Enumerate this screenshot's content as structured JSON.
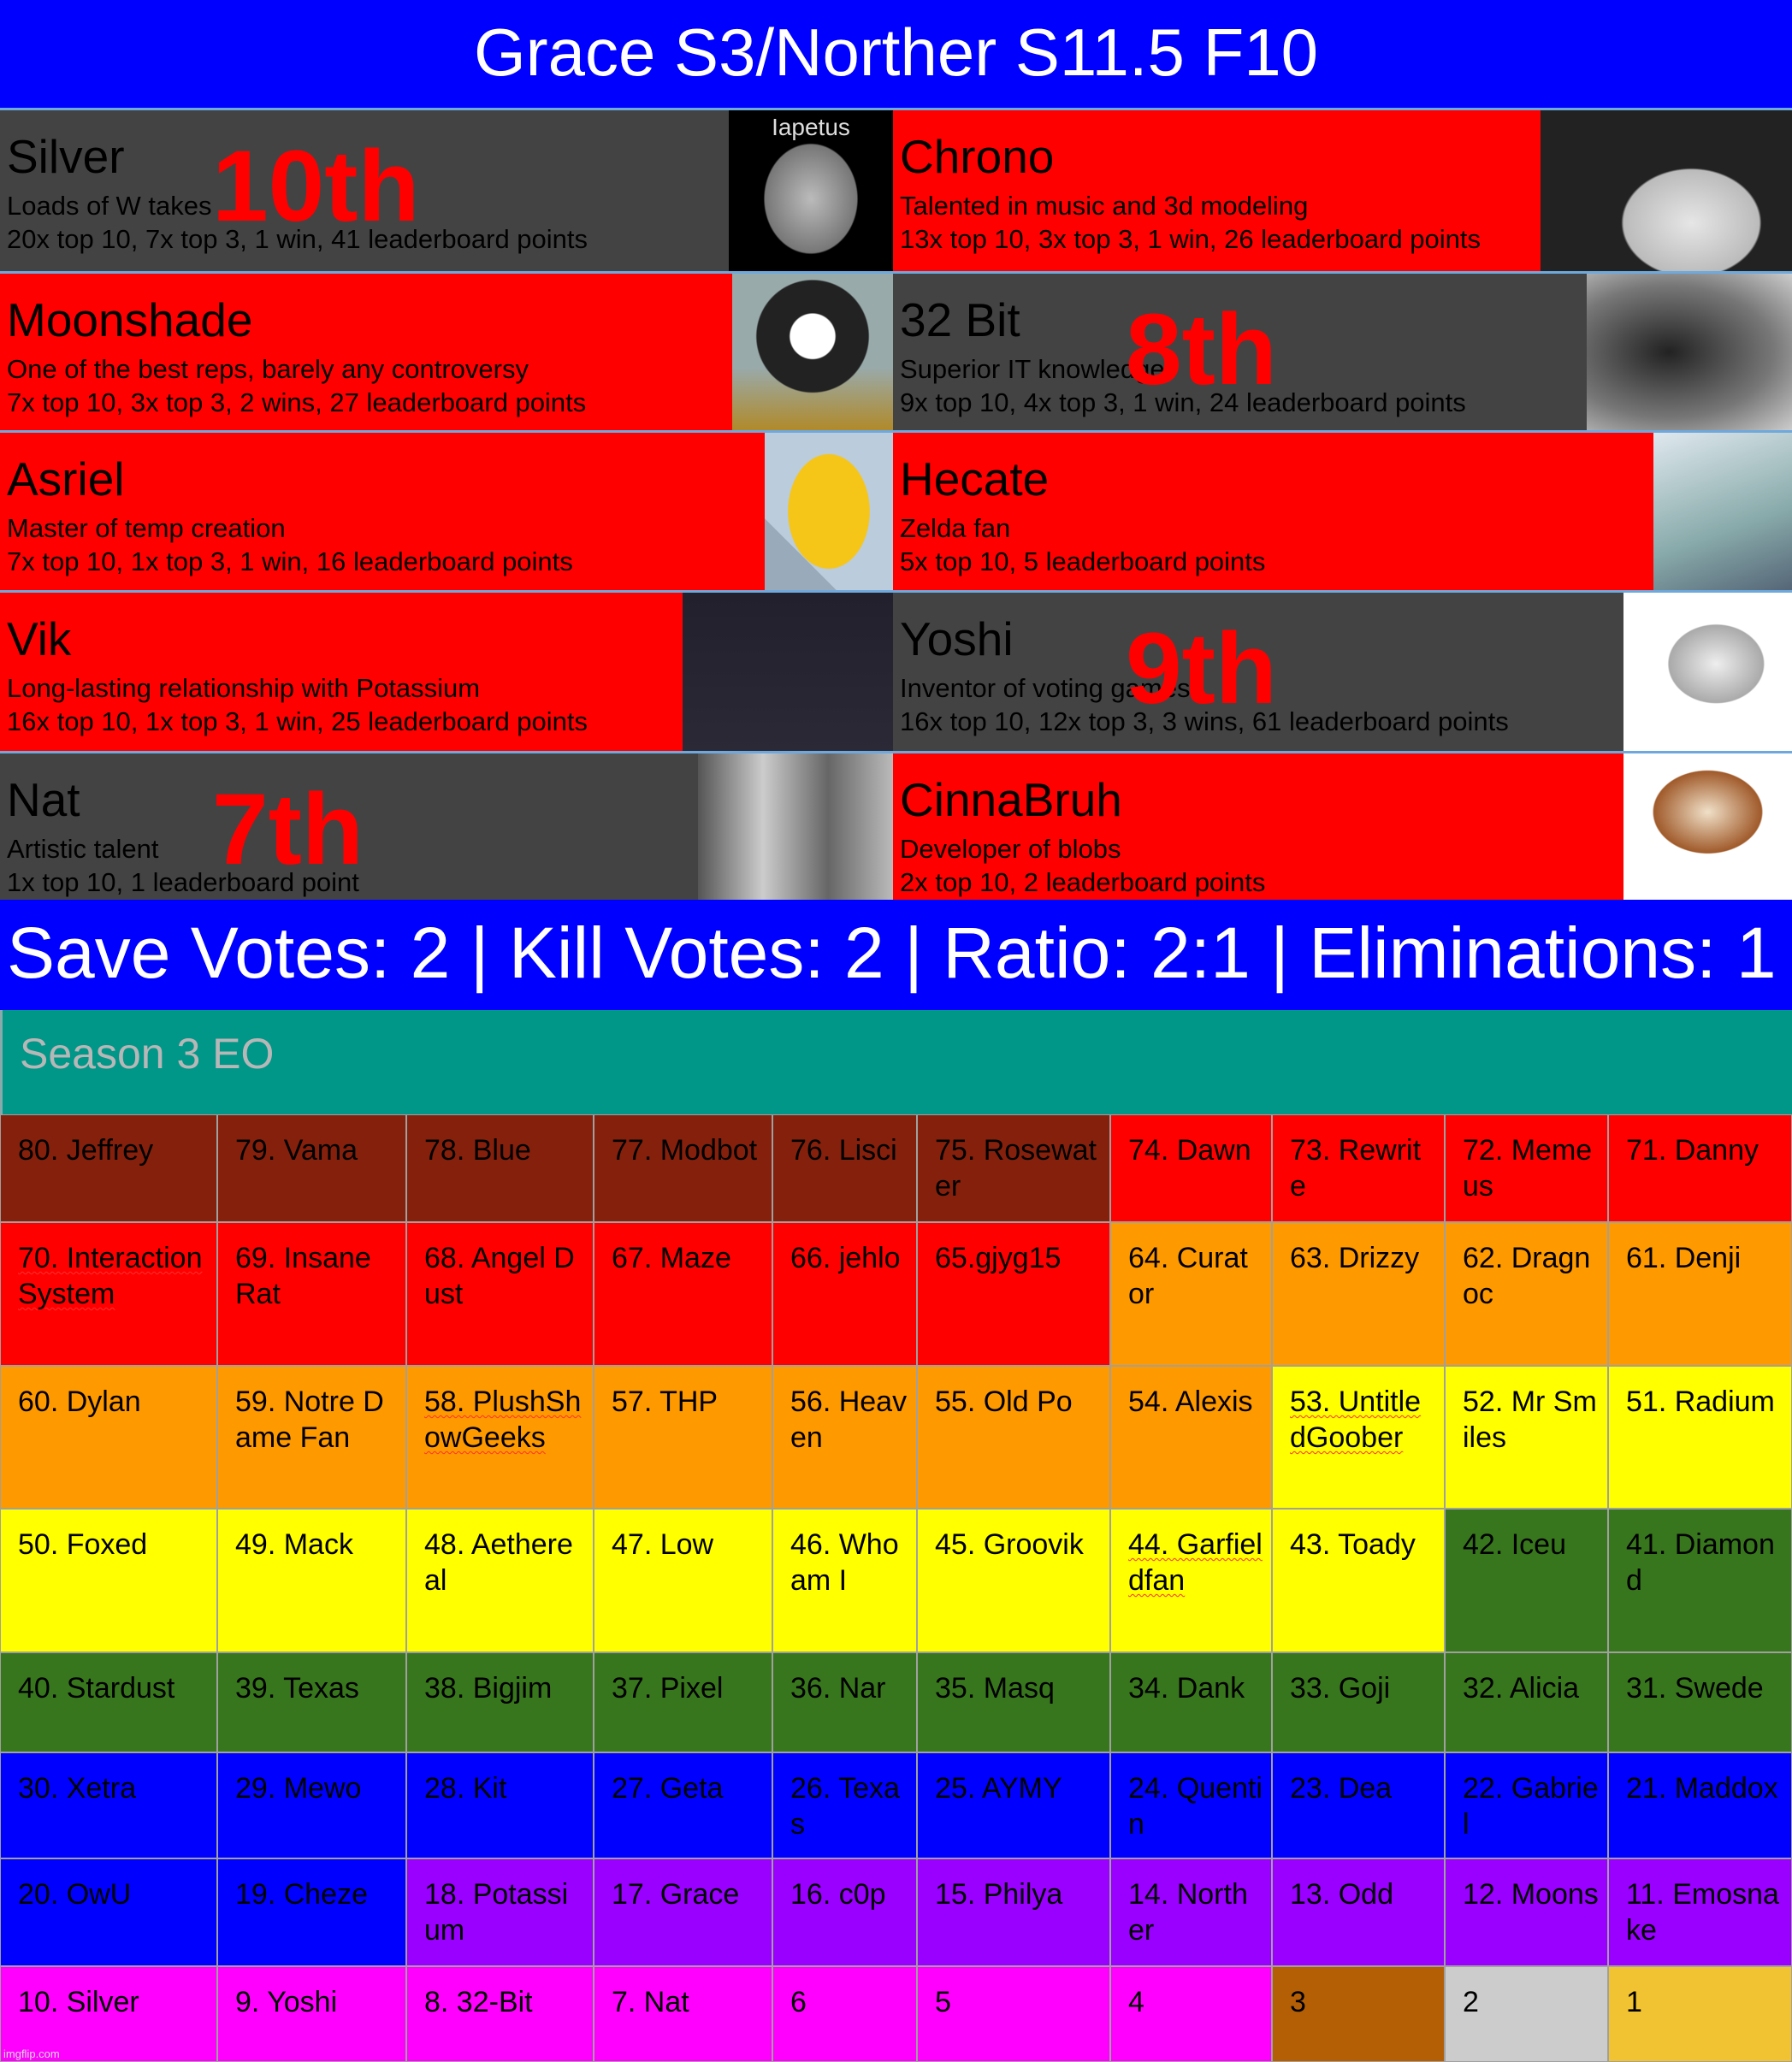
{
  "title": "Grace S3/Norther S11.5 F10",
  "colors": {
    "blue": "#0000ff",
    "red": "#ff0000",
    "gray": "#434343",
    "teal": "#009688",
    "maroon": "#85200c",
    "orange": "#ff9900",
    "yellow": "#ffff00",
    "green": "#38761d",
    "purple": "#9900ff",
    "magenta": "#ff00ff",
    "bronze": "#b45f06",
    "silver": "#cccccc",
    "gold": "#f1c232"
  },
  "cards": [
    {
      "name": "Silver",
      "desc": "Loads of W takes",
      "stats": "20x top 10, 7x top 3, 1 win, 41 leaderboard points",
      "bg": "#434343",
      "rank": "10th",
      "image": "moon-photo",
      "image_label": "Iapetus"
    },
    {
      "name": "Chrono",
      "desc": "Talented  in music and 3d modeling",
      "stats": "13x top 10, 3x top 3, 1 win, 26 leaderboard points",
      "bg": "#ff0000",
      "rank": "",
      "image": "3d-avatar"
    },
    {
      "name": "Moonshade",
      "desc": "One of the best reps, barely any controversy",
      "stats": "7x top 10, 3x top 3, 2 wins, 27 leaderboard points",
      "bg": "#ff0000",
      "rank": "",
      "image": "anime-character"
    },
    {
      "name": "32 Bit",
      "desc": "Superior IT knowledge",
      "stats": "9x top 10, 4x top 3, 1 win, 24 leaderboard points",
      "bg": "#434343",
      "rank": "8th",
      "image": "blurry-cat"
    },
    {
      "name": "Asriel",
      "desc": "Master of temp creation",
      "stats": "7x top 10, 1x top 3, 1 win, 16 leaderboard points",
      "bg": "#ff0000",
      "rank": "",
      "image": "cartoon-character"
    },
    {
      "name": "Hecate",
      "desc": "Zelda fan",
      "stats": "5x top 10, 5 leaderboard points",
      "bg": "#ff0000",
      "rank": "",
      "image": "game-cover"
    },
    {
      "name": "Vik",
      "desc": "Long-lasting relationship with Potassium",
      "stats": "16x top 10, 1x top 3, 1 win, 25 leaderboard points",
      "bg": "#ff0000",
      "rank": "",
      "image": "dark-drawing"
    },
    {
      "name": "Yoshi",
      "desc": "Inventor of voting games",
      "stats": "16x top 10, 12x top 3, 3 wins, 61 leaderboard points",
      "bg": "#434343",
      "rank": "9th",
      "image": "yoshi-render"
    },
    {
      "name": "Nat",
      "desc": "Artistic talent",
      "stats": "1x top 10, 1 leaderboard point",
      "bg": "#434343",
      "rank": "7th",
      "image": "comic-panel"
    },
    {
      "name": "CinnaBruh",
      "desc": "Developer of blobs",
      "stats": "2x top 10, 2 leaderboard points",
      "bg": "#ff0000",
      "rank": "",
      "image": "cinnamon-roll"
    }
  ],
  "votes": "Save Votes: 2 | Kill Votes: 2 | Ratio: 2:1 | Eliminations: 1",
  "season_title": "Season 3 EO",
  "grid": [
    [
      {
        "t": "80. Jeffrey",
        "c": "#85200c"
      },
      {
        "t": "79. Vama",
        "c": "#85200c"
      },
      {
        "t": "78. Blue",
        "c": "#85200c"
      },
      {
        "t": "77. Modbot",
        "c": "#85200c"
      },
      {
        "t": "76. Lisci",
        "c": "#85200c"
      },
      {
        "t": "75. Rosewater",
        "c": "#85200c"
      },
      {
        "t": "74. Dawn",
        "c": "#ff0000"
      },
      {
        "t": "73. Rewrite",
        "c": "#ff0000"
      },
      {
        "t": "72. Memeus",
        "c": "#ff0000"
      },
      {
        "t": "71. Danny",
        "c": "#ff0000"
      }
    ],
    [
      {
        "t": "70. InteractionSystem",
        "c": "#ff0000",
        "sq": true
      },
      {
        "t": "69. Insane Rat",
        "c": "#ff0000"
      },
      {
        "t": "68. Angel Dust",
        "c": "#ff0000"
      },
      {
        "t": "67. Maze",
        "c": "#ff0000"
      },
      {
        "t": "66. jehlo",
        "c": "#ff0000"
      },
      {
        "t": "65.gjyg15",
        "c": "#ff0000"
      },
      {
        "t": "64. Curator",
        "c": "#ff9900"
      },
      {
        "t": "63. Drizzy",
        "c": "#ff9900"
      },
      {
        "t": "62. Dragnoc",
        "c": "#ff9900"
      },
      {
        "t": "61. Denji",
        "c": "#ff9900"
      }
    ],
    [
      {
        "t": "60. Dylan",
        "c": "#ff9900"
      },
      {
        "t": "59. Notre Dame Fan",
        "c": "#ff9900"
      },
      {
        "t": "58. PlushShowGeeks",
        "c": "#ff9900",
        "sq": true
      },
      {
        "t": "57. THP",
        "c": "#ff9900"
      },
      {
        "t": "56. Heaven",
        "c": "#ff9900"
      },
      {
        "t": "55. Old Po",
        "c": "#ff9900"
      },
      {
        "t": "54. Alexis",
        "c": "#ff9900"
      },
      {
        "t": "53. UntitledGoober",
        "c": "#ffff00",
        "sq": true
      },
      {
        "t": "52. Mr Smiles",
        "c": "#ffff00"
      },
      {
        "t": "51. Radium",
        "c": "#ffff00"
      }
    ],
    [
      {
        "t": "50. Foxed",
        "c": "#ffff00"
      },
      {
        "t": "49. Mack",
        "c": "#ffff00"
      },
      {
        "t": "48. Aethereal",
        "c": "#ffff00"
      },
      {
        "t": "47. Low",
        "c": "#ffff00"
      },
      {
        "t": "46. Who am I",
        "c": "#ffff00"
      },
      {
        "t": "45. Groovik",
        "c": "#ffff00"
      },
      {
        "t": "44. Garfieldfan",
        "c": "#ffff00",
        "sq": true
      },
      {
        "t": "43. Toady",
        "c": "#ffff00"
      },
      {
        "t": "42. Iceu",
        "c": "#38761d"
      },
      {
        "t": "41. Diamond",
        "c": "#38761d"
      }
    ],
    [
      {
        "t": "40. Stardust",
        "c": "#38761d"
      },
      {
        "t": "39. Texas",
        "c": "#38761d"
      },
      {
        "t": "38. Bigjim",
        "c": "#38761d"
      },
      {
        "t": "37. Pixel",
        "c": "#38761d"
      },
      {
        "t": "36. Nar",
        "c": "#38761d"
      },
      {
        "t": "35. Masq",
        "c": "#38761d"
      },
      {
        "t": "34. Dank",
        "c": "#38761d"
      },
      {
        "t": "33. Goji",
        "c": "#38761d"
      },
      {
        "t": "32. Alicia",
        "c": "#38761d"
      },
      {
        "t": "31. Swede",
        "c": "#38761d"
      }
    ],
    [
      {
        "t": "30. Xetra",
        "c": "#0000ff"
      },
      {
        "t": "29. Mewo",
        "c": "#0000ff"
      },
      {
        "t": "28. Kit",
        "c": "#0000ff"
      },
      {
        "t": "27. Geta",
        "c": "#0000ff"
      },
      {
        "t": "26. Texas",
        "c": "#0000ff"
      },
      {
        "t": "25. AYMY",
        "c": "#0000ff"
      },
      {
        "t": "24. Quentin",
        "c": "#0000ff"
      },
      {
        "t": "23. Dea",
        "c": "#0000ff"
      },
      {
        "t": "22. Gabriel",
        "c": "#0000ff"
      },
      {
        "t": "21. Maddox",
        "c": "#0000ff"
      }
    ],
    [
      {
        "t": "20. OwU",
        "c": "#0000ff"
      },
      {
        "t": "19. Cheze",
        "c": "#0000ff"
      },
      {
        "t": "18. Potassium",
        "c": "#9900ff"
      },
      {
        "t": "17. Grace",
        "c": "#9900ff"
      },
      {
        "t": "16. c0p",
        "c": "#9900ff"
      },
      {
        "t": "15. Philya",
        "c": "#9900ff"
      },
      {
        "t": "14. Norther",
        "c": "#9900ff"
      },
      {
        "t": "13. Odd",
        "c": "#9900ff"
      },
      {
        "t": "12. Moons",
        "c": "#9900ff"
      },
      {
        "t": "11. Emosnake",
        "c": "#9900ff"
      }
    ],
    [
      {
        "t": "10. Silver",
        "c": "#ff00ff"
      },
      {
        "t": "9. Yoshi",
        "c": "#ff00ff"
      },
      {
        "t": "8. 32-Bit",
        "c": "#ff00ff"
      },
      {
        "t": "7. Nat",
        "c": "#ff00ff"
      },
      {
        "t": "6",
        "c": "#ff00ff"
      },
      {
        "t": "5",
        "c": "#ff00ff"
      },
      {
        "t": "4",
        "c": "#ff00ff"
      },
      {
        "t": "3",
        "c": "#b45f06"
      },
      {
        "t": "2",
        "c": "#cccccc"
      },
      {
        "t": "1",
        "c": "#f1c232"
      }
    ]
  ],
  "watermark": "imgflip.com"
}
